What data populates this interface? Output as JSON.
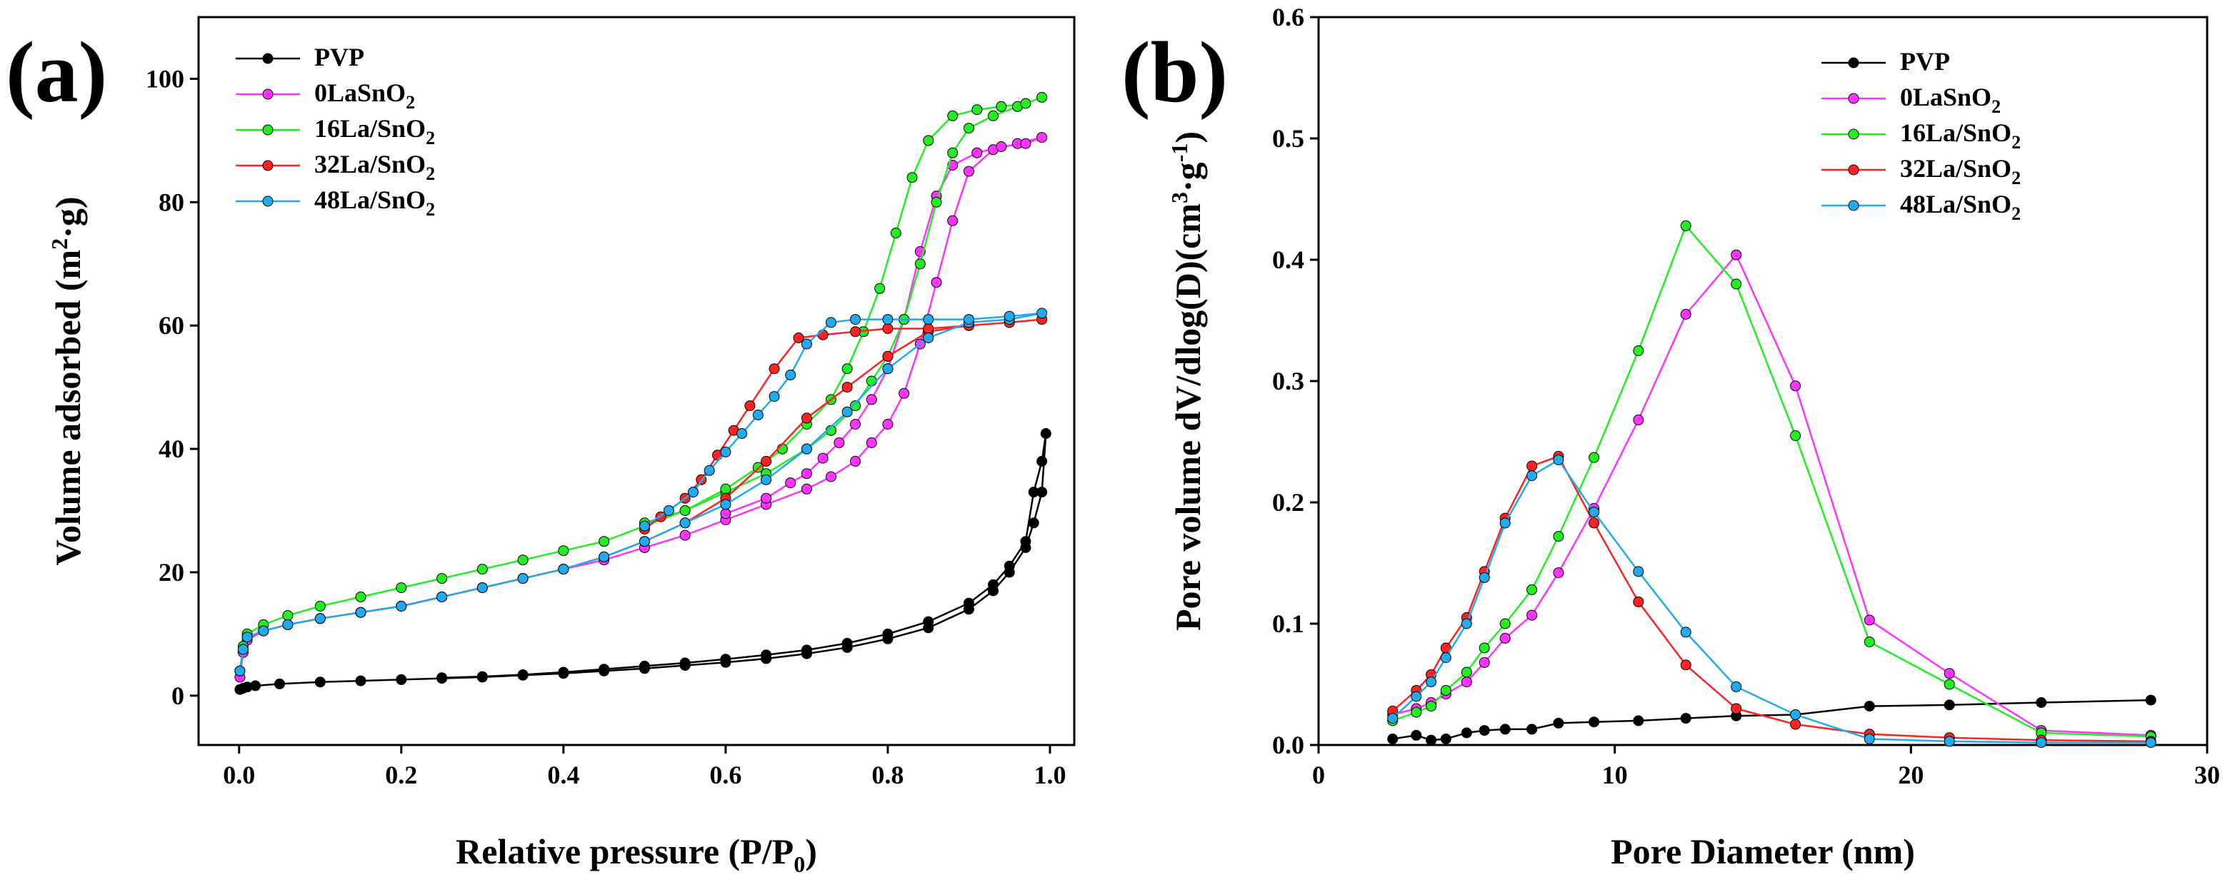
{
  "chart_data": [
    {
      "type": "line",
      "panel_label": "(a)",
      "xlabel_main": "Relative pressure (P/P",
      "xlabel_sub": "0",
      "xlabel_end": ")",
      "ylabel_main": "Volume adsorbed (m",
      "ylabel_sup": "2",
      "ylabel_end": "·g)",
      "xlim": [
        -0.05,
        1.03
      ],
      "ylim": [
        -8,
        110
      ],
      "xticks": [
        "0.0",
        "0.2",
        "0.4",
        "0.6",
        "0.8",
        "1.0"
      ],
      "xtick_values": [
        0,
        0.2,
        0.4,
        0.6,
        0.8,
        1.0
      ],
      "yticks": [
        "0",
        "20",
        "40",
        "60",
        "80",
        "100"
      ],
      "ytick_values": [
        0,
        20,
        40,
        60,
        80,
        100
      ],
      "legend_position": "top-left",
      "series": [
        {
          "name": "PVP",
          "label_main": "PVP",
          "label_sub": "",
          "color": "#000000",
          "x": [
            0.001,
            0.005,
            0.01,
            0.02,
            0.05,
            0.1,
            0.15,
            0.2,
            0.25,
            0.3,
            0.35,
            0.4,
            0.45,
            0.5,
            0.55,
            0.6,
            0.65,
            0.7,
            0.75,
            0.8,
            0.85,
            0.9,
            0.93,
            0.95,
            0.97,
            0.98,
            0.99,
            0.995,
            0.99,
            0.98,
            0.97,
            0.95,
            0.93,
            0.9,
            0.85,
            0.8,
            0.75,
            0.7,
            0.65,
            0.6,
            0.55,
            0.5,
            0.45,
            0.4,
            0.35,
            0.3,
            0.25
          ],
          "y": [
            1.0,
            1.2,
            1.4,
            1.6,
            1.9,
            2.2,
            2.4,
            2.6,
            2.8,
            3.0,
            3.3,
            3.6,
            4.0,
            4.4,
            4.9,
            5.4,
            6.0,
            6.8,
            7.8,
            9.2,
            11.0,
            14.0,
            17.0,
            20.0,
            24.0,
            28.0,
            33.0,
            42.5,
            38.0,
            33.0,
            25.0,
            21.0,
            18.0,
            15.0,
            12.0,
            10.0,
            8.5,
            7.4,
            6.6,
            5.9,
            5.3,
            4.8,
            4.3,
            3.8,
            3.4,
            3.1,
            2.9
          ]
        },
        {
          "name": "0LaSnO2",
          "label_main": "0LaSnO",
          "label_sub": "2",
          "color": "#ff33ff",
          "x": [
            0.001,
            0.005,
            0.01,
            0.03,
            0.06,
            0.1,
            0.15,
            0.2,
            0.25,
            0.3,
            0.35,
            0.4,
            0.45,
            0.5,
            0.55,
            0.6,
            0.65,
            0.7,
            0.73,
            0.76,
            0.78,
            0.8,
            0.82,
            0.84,
            0.86,
            0.88,
            0.9,
            0.93,
            0.96,
            0.99,
            0.97,
            0.94,
            0.91,
            0.88,
            0.86,
            0.84,
            0.82,
            0.8,
            0.78,
            0.76,
            0.74,
            0.72,
            0.7,
            0.68,
            0.65,
            0.6
          ],
          "y": [
            3.0,
            7.0,
            9.0,
            10.5,
            11.5,
            12.5,
            13.5,
            14.5,
            16.0,
            17.5,
            19.0,
            20.5,
            22.0,
            24.0,
            26.0,
            28.5,
            31.0,
            33.5,
            35.5,
            38.0,
            41.0,
            44.0,
            49.0,
            57.0,
            67.0,
            77.0,
            85.0,
            88.5,
            89.5,
            90.5,
            89.5,
            89.0,
            88.0,
            86.0,
            81.0,
            72.0,
            61.0,
            53.0,
            48.0,
            44.0,
            41.0,
            38.5,
            36.0,
            34.5,
            32.0,
            29.5
          ]
        },
        {
          "name": "16La/SnO2",
          "label_main": "16La/SnO",
          "label_sub": "2",
          "color": "#22ee22",
          "x": [
            0.001,
            0.005,
            0.01,
            0.03,
            0.06,
            0.1,
            0.15,
            0.2,
            0.25,
            0.3,
            0.35,
            0.4,
            0.45,
            0.5,
            0.55,
            0.6,
            0.65,
            0.7,
            0.73,
            0.76,
            0.78,
            0.8,
            0.82,
            0.84,
            0.86,
            0.88,
            0.9,
            0.93,
            0.96,
            0.99,
            0.97,
            0.94,
            0.91,
            0.88,
            0.85,
            0.83,
            0.81,
            0.79,
            0.77,
            0.75,
            0.73,
            0.7,
            0.67,
            0.64,
            0.6,
            0.55,
            0.5
          ],
          "y": [
            4.0,
            8.0,
            10.0,
            11.5,
            13.0,
            14.5,
            16.0,
            17.5,
            19.0,
            20.5,
            22.0,
            23.5,
            25.0,
            27.5,
            30.0,
            33.0,
            36.0,
            40.0,
            43.0,
            47.0,
            51.0,
            55.0,
            61.0,
            70.0,
            80.0,
            88.0,
            92.0,
            94.0,
            95.5,
            97.0,
            96.0,
            95.5,
            95.0,
            94.0,
            90.0,
            84.0,
            75.0,
            66.0,
            59.0,
            53.0,
            48.0,
            44.0,
            40.0,
            37.0,
            33.5,
            30.0,
            28.0
          ]
        },
        {
          "name": "32La/SnO2",
          "label_main": "32La/SnO",
          "label_sub": "2",
          "color": "#ff2222",
          "x": [
            0.001,
            0.005,
            0.01,
            0.03,
            0.06,
            0.1,
            0.15,
            0.2,
            0.25,
            0.3,
            0.35,
            0.4,
            0.45,
            0.5,
            0.55,
            0.6,
            0.65,
            0.7,
            0.75,
            0.8,
            0.85,
            0.9,
            0.95,
            0.99,
            0.95,
            0.9,
            0.85,
            0.8,
            0.76,
            0.72,
            0.69,
            0.66,
            0.63,
            0.61,
            0.59,
            0.57,
            0.55,
            0.52,
            0.5
          ],
          "y": [
            4.0,
            7.5,
            9.5,
            10.5,
            11.5,
            12.5,
            13.5,
            14.5,
            16.0,
            17.5,
            19.0,
            20.5,
            22.5,
            25.0,
            28.0,
            32.0,
            38.0,
            45.0,
            50.0,
            55.0,
            59.0,
            60.0,
            60.5,
            61.0,
            60.5,
            60.0,
            59.5,
            59.5,
            59.0,
            58.5,
            58.0,
            53.0,
            47.0,
            43.0,
            39.0,
            35.0,
            32.0,
            29.0,
            27.0
          ]
        },
        {
          "name": "48La/SnO2",
          "label_main": "48La/SnO",
          "label_sub": "2",
          "color": "#22aaee",
          "x": [
            0.001,
            0.005,
            0.01,
            0.03,
            0.06,
            0.1,
            0.15,
            0.2,
            0.25,
            0.3,
            0.35,
            0.4,
            0.45,
            0.5,
            0.55,
            0.6,
            0.65,
            0.7,
            0.75,
            0.8,
            0.85,
            0.9,
            0.95,
            0.99,
            0.95,
            0.9,
            0.85,
            0.8,
            0.76,
            0.73,
            0.7,
            0.68,
            0.66,
            0.64,
            0.62,
            0.6,
            0.58,
            0.56,
            0.53,
            0.5
          ],
          "y": [
            4.0,
            7.5,
            9.5,
            10.5,
            11.5,
            12.5,
            13.5,
            14.5,
            16.0,
            17.5,
            19.0,
            20.5,
            22.5,
            25.0,
            28.0,
            31.0,
            35.0,
            40.0,
            46.0,
            53.0,
            58.0,
            60.5,
            61.0,
            62.0,
            61.5,
            61.0,
            61.0,
            61.0,
            61.0,
            60.5,
            57.0,
            52.0,
            48.5,
            45.5,
            42.5,
            39.5,
            36.5,
            33.0,
            30.0,
            27.5
          ]
        }
      ]
    },
    {
      "type": "line",
      "panel_label": "(b)",
      "xlabel": "Pore Diameter (nm)",
      "ylabel_main": "Pore volume dV/dlog(D)(cm",
      "ylabel_sup1": "3",
      "ylabel_mid": "·g",
      "ylabel_sup2": "-1",
      "ylabel_end": ")",
      "xlim": [
        0,
        30
      ],
      "ylim": [
        0,
        0.6
      ],
      "xticks": [
        "0",
        "10",
        "20",
        "30"
      ],
      "xtick_values": [
        0,
        10,
        20,
        30
      ],
      "yticks": [
        "0.0",
        "0.1",
        "0.2",
        "0.3",
        "0.4",
        "0.5",
        "0.6"
      ],
      "ytick_values": [
        0,
        0.1,
        0.2,
        0.3,
        0.4,
        0.5,
        0.6
      ],
      "legend_position": "top-right",
      "series": [
        {
          "name": "PVP",
          "label_main": "PVP",
          "label_sub": "",
          "color": "#000000",
          "x": [
            2.5,
            3.3,
            3.8,
            4.3,
            5.0,
            5.6,
            6.3,
            7.2,
            8.1,
            9.3,
            10.8,
            12.4,
            14.1,
            16.1,
            18.6,
            21.3,
            24.4,
            28.1
          ],
          "y": [
            0.005,
            0.008,
            0.004,
            0.005,
            0.01,
            0.012,
            0.013,
            0.013,
            0.018,
            0.019,
            0.02,
            0.022,
            0.024,
            0.025,
            0.032,
            0.033,
            0.035,
            0.037
          ]
        },
        {
          "name": "0LaSnO2",
          "label_main": "0LaSnO",
          "label_sub": "2",
          "color": "#ff33ff",
          "x": [
            2.5,
            3.3,
            3.8,
            4.3,
            5.0,
            5.6,
            6.3,
            7.2,
            8.1,
            9.3,
            10.8,
            12.4,
            14.1,
            16.1,
            18.6,
            21.3,
            24.4,
            28.1
          ],
          "y": [
            0.025,
            0.03,
            0.035,
            0.042,
            0.052,
            0.068,
            0.088,
            0.107,
            0.142,
            0.195,
            0.268,
            0.355,
            0.404,
            0.296,
            0.103,
            0.059,
            0.012,
            0.008
          ]
        },
        {
          "name": "16La/SnO2",
          "label_main": "16La/SnO",
          "label_sub": "2",
          "color": "#22ee22",
          "x": [
            2.5,
            3.3,
            3.8,
            4.3,
            5.0,
            5.6,
            6.3,
            7.2,
            8.1,
            9.3,
            10.8,
            12.4,
            14.1,
            16.1,
            18.6,
            21.3,
            24.4,
            28.1
          ],
          "y": [
            0.02,
            0.027,
            0.032,
            0.045,
            0.06,
            0.08,
            0.1,
            0.128,
            0.172,
            0.237,
            0.325,
            0.428,
            0.38,
            0.255,
            0.085,
            0.05,
            0.01,
            0.007
          ]
        },
        {
          "name": "32La/SnO2",
          "label_main": "32La/SnO",
          "label_sub": "2",
          "color": "#ff2222",
          "x": [
            2.5,
            3.3,
            3.8,
            4.3,
            5.0,
            5.6,
            6.3,
            7.2,
            8.1,
            9.3,
            10.8,
            12.4,
            14.1,
            16.1,
            18.6,
            21.3,
            24.4,
            28.1
          ],
          "y": [
            0.028,
            0.045,
            0.058,
            0.08,
            0.105,
            0.143,
            0.187,
            0.23,
            0.238,
            0.183,
            0.118,
            0.066,
            0.03,
            0.017,
            0.009,
            0.006,
            0.004,
            0.003
          ]
        },
        {
          "name": "48La/SnO2",
          "label_main": "48La/SnO",
          "label_sub": "2",
          "color": "#22aaee",
          "x": [
            2.5,
            3.3,
            3.8,
            4.3,
            5.0,
            5.6,
            6.3,
            7.2,
            8.1,
            9.3,
            10.8,
            12.4,
            14.1,
            16.1,
            18.6,
            21.3,
            24.4,
            28.1
          ],
          "y": [
            0.022,
            0.04,
            0.052,
            0.072,
            0.1,
            0.138,
            0.183,
            0.222,
            0.235,
            0.192,
            0.143,
            0.093,
            0.048,
            0.025,
            0.005,
            0.003,
            0.002,
            0.002
          ]
        }
      ]
    }
  ]
}
